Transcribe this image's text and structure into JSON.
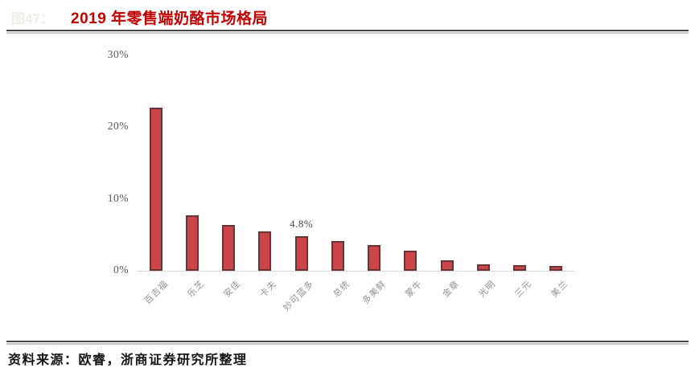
{
  "header": {
    "figure_label_ghost": "图47：",
    "title": "2019 年零售端奶酪市场格局",
    "title_color": "#c00000"
  },
  "chart_data": {
    "type": "bar",
    "title": "2019 年零售端奶酪市场格局",
    "categories": [
      "百吉福",
      "乐芝",
      "安佳",
      "卡夫",
      "妙可蓝多",
      "总统",
      "多美鲜",
      "蒙牛",
      "金章",
      "光明",
      "三元",
      "美兰"
    ],
    "values": [
      22.7,
      7.7,
      6.4,
      5.5,
      4.8,
      4.1,
      3.6,
      2.8,
      1.5,
      0.9,
      0.8,
      0.7
    ],
    "unit": "%",
    "xlabel": "",
    "ylabel": "",
    "ylim": [
      0,
      30
    ],
    "yticks": [
      {
        "label": "30%",
        "value": 30
      },
      {
        "label": "20%",
        "value": 20
      },
      {
        "label": "10%",
        "value": 10
      },
      {
        "label": "0%",
        "value": 0
      }
    ],
    "data_label": {
      "index": 4,
      "text": "4.8%"
    },
    "grid": false,
    "legend": null,
    "bar_fill": "#cb4448",
    "bar_border": "#6b3434",
    "axis_line_color": "#d6d6d6"
  },
  "footer": {
    "source_text": "资料来源：欧睿，浙商证券研究所整理"
  }
}
